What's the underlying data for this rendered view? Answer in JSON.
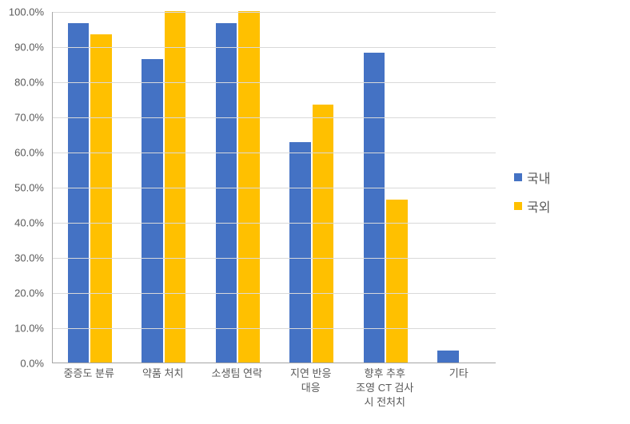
{
  "chart": {
    "type": "bar",
    "categories": [
      "중증도 분류",
      "약품 처치",
      "소생팀 연락",
      "지연 반응\n대응",
      "향후 추후\n조영 CT 검사\n시 전처치",
      "기타"
    ],
    "series": [
      {
        "name": "국내",
        "color": "#4472c4",
        "values": [
          96.7,
          86.4,
          96.7,
          62.7,
          88.2,
          3.4
        ]
      },
      {
        "name": "국외",
        "color": "#ffc000",
        "values": [
          93.3,
          100.0,
          100.0,
          73.3,
          46.4,
          0.0
        ]
      }
    ],
    "y_axis": {
      "min": 0,
      "max": 100,
      "step": 10,
      "format_suffix": "%",
      "format_decimals": 1
    },
    "style": {
      "background_color": "#ffffff",
      "grid_color": "#d9d9d9",
      "axis_color": "#a6a6a6",
      "text_color": "#595959",
      "axis_fontsize": 13,
      "legend_fontsize": 16,
      "bar_group_width": 0.6,
      "bar_gap": 0.02
    }
  }
}
